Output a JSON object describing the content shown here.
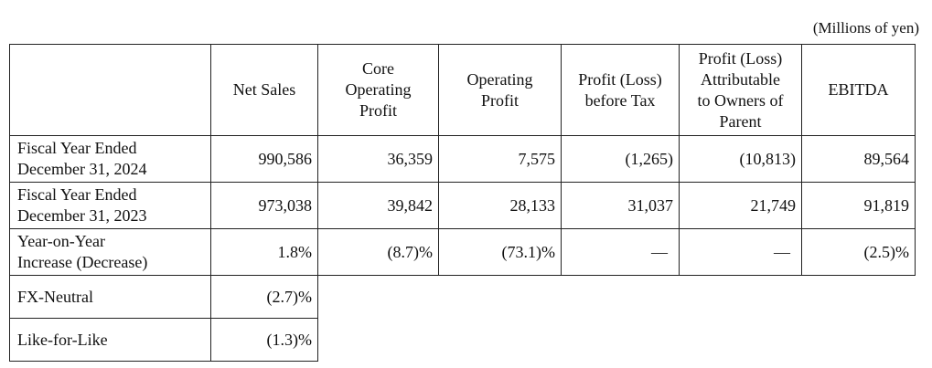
{
  "unit_note": "(Millions of yen)",
  "headers": [
    "Net Sales",
    "Core\nOperating\nProfit",
    "Operating\nProfit",
    "Profit (Loss)\nbefore Tax",
    "Profit (Loss)\nAttributable\nto Owners of\nParent",
    "EBITDA"
  ],
  "rows": [
    {
      "label": "Fiscal Year Ended\nDecember 31, 2024",
      "values": [
        "990,586",
        "36,359",
        "7,575",
        "(1,265)",
        "(10,813)",
        "89,564"
      ]
    },
    {
      "label": "Fiscal Year Ended\nDecember 31, 2023",
      "values": [
        "973,038",
        "39,842",
        "28,133",
        "31,037",
        "21,749",
        "91,819"
      ]
    },
    {
      "label": "Year-on-Year\nIncrease (Decrease)",
      "values": [
        "1.8%",
        "(8.7)%",
        "(73.1)%",
        "—",
        "—",
        "(2.5)%"
      ]
    }
  ],
  "extra_rows": [
    {
      "label": "FX-Neutral",
      "value": "(2.7)%"
    },
    {
      "label": "Like-for-Like",
      "value": "(1.3)%"
    }
  ]
}
